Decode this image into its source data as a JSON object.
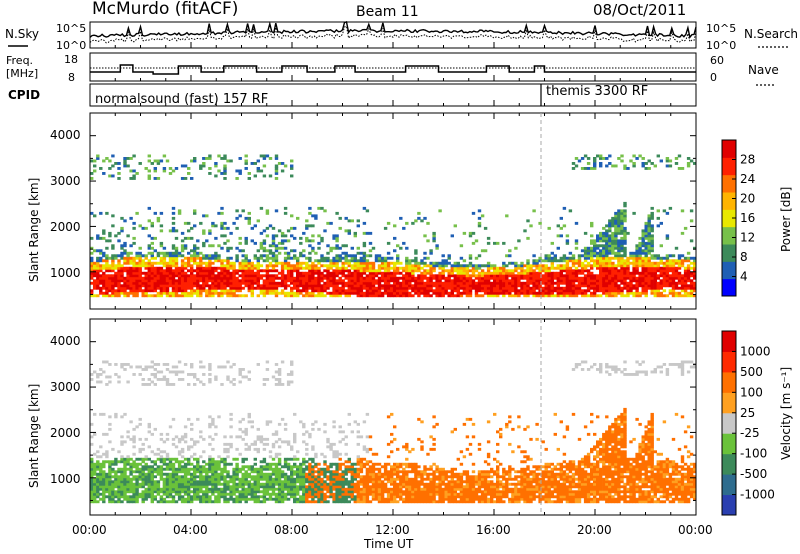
{
  "header": {
    "station": "McMurdo (fitACF)",
    "beam": "Beam 11",
    "date": "08/Oct/2011"
  },
  "noise_panel": {
    "left_label": "N.Sky",
    "right_label": "N.Search",
    "left_ticks": [
      "10^5",
      "10^0"
    ],
    "right_ticks": [
      "10^5",
      "10^0"
    ]
  },
  "freq_panel": {
    "left_label_line1": "Freq.",
    "left_label_line2": "[MHz]",
    "left_ticks": [
      "18",
      "8"
    ],
    "right_label": "Nave",
    "right_ticks": [
      "60",
      "0"
    ]
  },
  "cpid_panel": {
    "label": "CPID",
    "mode1": "normalsound (fast) 157 RF",
    "mode2": "themis 3300 RF"
  },
  "x_axis": {
    "label": "Time UT",
    "ticks": [
      "00:00",
      "04:00",
      "08:00",
      "12:00",
      "16:00",
      "20:00",
      "00:00"
    ]
  },
  "power_panel": {
    "ylabel": "Slant Range [km]",
    "yticks": [
      "4000",
      "3000",
      "2000",
      "1000"
    ],
    "colorbar_label": "Power [dB]",
    "colorbar_ticks": [
      "28",
      "24",
      "20",
      "16",
      "12",
      "8",
      "4"
    ],
    "colors": [
      "#0000ff",
      "#1f5fb4",
      "#3c8a5a",
      "#77c04a",
      "#e8e800",
      "#ffb400",
      "#ff7000",
      "#ff2000",
      "#e00000"
    ]
  },
  "velocity_panel": {
    "ylabel": "Slant Range [km]",
    "yticks": [
      "4000",
      "3000",
      "2000",
      "1000"
    ],
    "colorbar_label": "Velocity [m s⁻¹]",
    "colorbar_ticks": [
      "1000",
      "500",
      "100",
      "25",
      "-25",
      "-100",
      "-500",
      "-1000"
    ],
    "colors": [
      "#2a3fb0",
      "#2e6c8e",
      "#3c8a5a",
      "#6ac23a",
      "#c8c8c8",
      "#ffa020",
      "#ff7000",
      "#ff2a00",
      "#e00000"
    ]
  },
  "chart_data": {
    "type": "heatmap",
    "title": "McMurdo (fitACF) Beam 11 08/Oct/2011",
    "xlabel": "Time UT",
    "ylabel": "Slant Range [km]",
    "x_range_hours": [
      0,
      24
    ],
    "y_range_km": [
      180,
      4500
    ],
    "cpid_change_hour": 18.0,
    "power_colorbar_db": [
      4,
      8,
      12,
      16,
      20,
      24,
      28
    ],
    "velocity_colorbar_ms": [
      -1000,
      -500,
      -100,
      -25,
      25,
      100,
      500,
      1000
    ]
  }
}
